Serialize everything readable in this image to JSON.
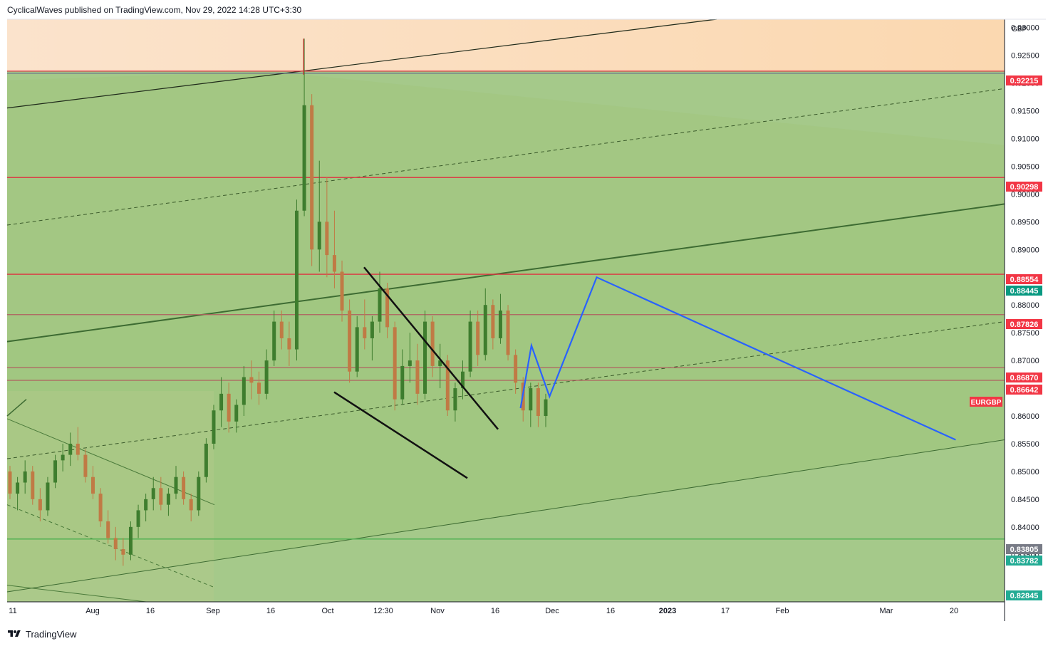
{
  "header": {
    "text": "CyclicalWaves published on TradingView.com, Nov 29, 2022 14:28 UTC+3:30"
  },
  "footer": {
    "brand": "TradingView",
    "logo_icon": "tradingview-logo-icon"
  },
  "chart_data": {
    "type": "candlestick",
    "symbol": "EURGBP",
    "currency": "GBP",
    "symbol_label_color": "#f23645",
    "x_ticks": [
      "11",
      "Aug",
      "16",
      "Sep",
      "16",
      "Oct",
      "12:30",
      "Nov",
      "16",
      "Dec",
      "16",
      "2023",
      "17",
      "Feb",
      "Mar",
      "20"
    ],
    "x_ticks_bold": [
      "2023"
    ],
    "y_ticks": [
      "0.93000",
      "0.92500",
      "0.92000",
      "0.91500",
      "0.91000",
      "0.90500",
      "0.90000",
      "0.89500",
      "0.89000",
      "0.88000",
      "0.87500",
      "0.87000",
      "0.86500",
      "0.86000",
      "0.85500",
      "0.85000",
      "0.84500",
      "0.84000",
      "0.83500"
    ],
    "ylim": [
      0.8265,
      0.9315
    ],
    "price_labels": [
      {
        "text": "0.92215",
        "value": 0.92215,
        "color": "#f23645"
      },
      {
        "text": "0.90298",
        "value": 0.90298,
        "color": "#f23645"
      },
      {
        "text": "0.88554",
        "value": 0.88554,
        "color": "#f23645"
      },
      {
        "text": "0.88445",
        "value": 0.88445,
        "color": "#089981"
      },
      {
        "text": "0.87826",
        "value": 0.87826,
        "color": "#f23645"
      },
      {
        "text": "0.86870",
        "value": 0.8687,
        "color": "#f23645"
      },
      {
        "text": "0.86642",
        "value": 0.86642,
        "color": "#f23645"
      },
      {
        "text": "0.83805",
        "value": 0.83805,
        "color": "#787b86"
      },
      {
        "text": "0.83782",
        "value": 0.83782,
        "color": "#22ab94"
      },
      {
        "text": "0.82845",
        "value": 0.82845,
        "color": "#22ab94"
      }
    ],
    "horizontal_levels": [
      {
        "value": 0.92215,
        "color": "#e03040"
      },
      {
        "value": 0.90298,
        "color": "#e03040"
      },
      {
        "value": 0.88554,
        "color": "#e03040"
      },
      {
        "value": 0.87826,
        "color": "#b06060"
      },
      {
        "value": 0.8687,
        "color": "#b06060"
      },
      {
        "value": 0.86642,
        "color": "#b06060"
      },
      {
        "value": 0.83782,
        "color": "#4caf50"
      }
    ],
    "projection_path": [
      {
        "date": "2022-11-28",
        "value": 0.8614
      },
      {
        "date": "2022-12-01",
        "value": 0.8727
      },
      {
        "date": "2022-12-06",
        "value": 0.8635
      },
      {
        "date": "2022-12-19",
        "value": 0.885
      },
      {
        "date": "2023-03-28",
        "value": 0.8557
      }
    ],
    "projection_color": "#2962ff",
    "candles_ohlc": [
      [
        0.85,
        0.851,
        0.845,
        0.846
      ],
      [
        0.846,
        0.849,
        0.843,
        0.848
      ],
      [
        0.848,
        0.852,
        0.846,
        0.85
      ],
      [
        0.85,
        0.851,
        0.844,
        0.845
      ],
      [
        0.845,
        0.847,
        0.841,
        0.843
      ],
      [
        0.843,
        0.849,
        0.842,
        0.848
      ],
      [
        0.848,
        0.853,
        0.847,
        0.852
      ],
      [
        0.852,
        0.855,
        0.85,
        0.853
      ],
      [
        0.853,
        0.857,
        0.851,
        0.855
      ],
      [
        0.855,
        0.858,
        0.852,
        0.853
      ],
      [
        0.853,
        0.854,
        0.848,
        0.849
      ],
      [
        0.849,
        0.851,
        0.845,
        0.846
      ],
      [
        0.846,
        0.847,
        0.84,
        0.841
      ],
      [
        0.841,
        0.843,
        0.837,
        0.838
      ],
      [
        0.838,
        0.84,
        0.834,
        0.836
      ],
      [
        0.836,
        0.838,
        0.833,
        0.835
      ],
      [
        0.835,
        0.841,
        0.834,
        0.84
      ],
      [
        0.84,
        0.844,
        0.838,
        0.843
      ],
      [
        0.843,
        0.846,
        0.841,
        0.845
      ],
      [
        0.845,
        0.849,
        0.843,
        0.847
      ],
      [
        0.847,
        0.849,
        0.843,
        0.844
      ],
      [
        0.844,
        0.847,
        0.842,
        0.846
      ],
      [
        0.846,
        0.851,
        0.845,
        0.849
      ],
      [
        0.849,
        0.85,
        0.844,
        0.845
      ],
      [
        0.845,
        0.846,
        0.841,
        0.843
      ],
      [
        0.843,
        0.85,
        0.842,
        0.849
      ],
      [
        0.849,
        0.856,
        0.848,
        0.855
      ],
      [
        0.855,
        0.862,
        0.854,
        0.861
      ],
      [
        0.861,
        0.867,
        0.858,
        0.864
      ],
      [
        0.864,
        0.866,
        0.857,
        0.859
      ],
      [
        0.859,
        0.863,
        0.857,
        0.862
      ],
      [
        0.862,
        0.869,
        0.86,
        0.867
      ],
      [
        0.867,
        0.87,
        0.863,
        0.866
      ],
      [
        0.866,
        0.868,
        0.862,
        0.864
      ],
      [
        0.864,
        0.872,
        0.863,
        0.87
      ],
      [
        0.87,
        0.879,
        0.869,
        0.877
      ],
      [
        0.877,
        0.879,
        0.872,
        0.874
      ],
      [
        0.874,
        0.877,
        0.869,
        0.872
      ],
      [
        0.872,
        0.899,
        0.87,
        0.897
      ],
      [
        0.897,
        0.928,
        0.896,
        0.916
      ],
      [
        0.916,
        0.918,
        0.887,
        0.89
      ],
      [
        0.89,
        0.906,
        0.886,
        0.895
      ],
      [
        0.895,
        0.903,
        0.885,
        0.889
      ],
      [
        0.889,
        0.897,
        0.883,
        0.886
      ],
      [
        0.886,
        0.888,
        0.877,
        0.879
      ],
      [
        0.879,
        0.881,
        0.866,
        0.868
      ],
      [
        0.868,
        0.878,
        0.867,
        0.876
      ],
      [
        0.876,
        0.881,
        0.872,
        0.874
      ],
      [
        0.874,
        0.878,
        0.87,
        0.877
      ],
      [
        0.877,
        0.886,
        0.875,
        0.883
      ],
      [
        0.883,
        0.884,
        0.874,
        0.876
      ],
      [
        0.876,
        0.877,
        0.861,
        0.863
      ],
      [
        0.863,
        0.872,
        0.862,
        0.869
      ],
      [
        0.869,
        0.875,
        0.866,
        0.87
      ],
      [
        0.87,
        0.873,
        0.862,
        0.864
      ],
      [
        0.864,
        0.879,
        0.863,
        0.877
      ],
      [
        0.877,
        0.878,
        0.867,
        0.869
      ],
      [
        0.869,
        0.873,
        0.865,
        0.87
      ],
      [
        0.87,
        0.871,
        0.86,
        0.861
      ],
      [
        0.861,
        0.866,
        0.859,
        0.865
      ],
      [
        0.865,
        0.87,
        0.863,
        0.868
      ],
      [
        0.868,
        0.879,
        0.867,
        0.877
      ],
      [
        0.877,
        0.879,
        0.869,
        0.871
      ],
      [
        0.871,
        0.883,
        0.87,
        0.88
      ],
      [
        0.88,
        0.881,
        0.872,
        0.874
      ],
      [
        0.874,
        0.882,
        0.873,
        0.879
      ],
      [
        0.879,
        0.88,
        0.87,
        0.871
      ],
      [
        0.871,
        0.872,
        0.864,
        0.866
      ],
      [
        0.866,
        0.867,
        0.859,
        0.861
      ],
      [
        0.861,
        0.866,
        0.858,
        0.865
      ],
      [
        0.865,
        0.866,
        0.858,
        0.86
      ],
      [
        0.86,
        0.864,
        0.858,
        0.863
      ]
    ]
  }
}
